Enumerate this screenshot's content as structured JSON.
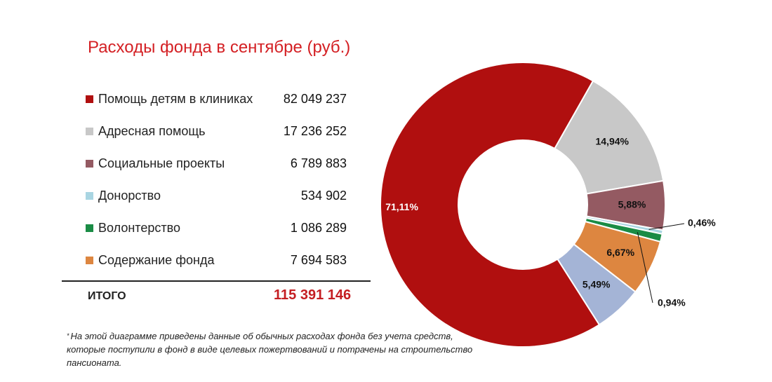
{
  "title": "Расходы фонда в сентябре (руб.)",
  "chart_data": {
    "type": "pie",
    "title": "Расходы фонда в сентябре (руб.)",
    "categories": [
      "Помощь детям в клиниках",
      "Адресная помощь",
      "Социальные проекты",
      "Донорство",
      "Волонтерство",
      "Содержание фонда"
    ],
    "values": [
      82049237,
      17236252,
      6789883,
      534902,
      1086289,
      7694583
    ],
    "value_labels": [
      "82 049 237",
      "17 236 252",
      "6 789 883",
      "534 902",
      "1 086 289",
      "7 694 583"
    ],
    "percent_labels": [
      "71,11%",
      "14,94%",
      "5,88%",
      "0,46%",
      "0,94%",
      "6,67%"
    ],
    "colors": [
      "#b00f0f",
      "#c8c8c8",
      "#945a62",
      "#a9d5e2",
      "#1a8c45",
      "#dd8640"
    ],
    "legend": "left",
    "hole": "donut",
    "other_slice": {
      "label": "5,49%",
      "value_percent": 5.49,
      "color": "#a4b4d6"
    }
  },
  "legend": [
    {
      "label": "Помощь детям в клиниках",
      "value": "82 049 237",
      "color": "#b00f0f"
    },
    {
      "label": "Адресная помощь",
      "value": "17 236 252",
      "color": "#c8c8c8"
    },
    {
      "label": "Социальные проекты",
      "value": "6 789 883",
      "color": "#945a62"
    },
    {
      "label": "Донорство",
      "value": "534 902",
      "color": "#a9d5e2"
    },
    {
      "label": "Волонтерство",
      "value": "1 086 289",
      "color": "#1a8c45"
    },
    {
      "label": "Содержание фонда",
      "value": "7 694 583",
      "color": "#dd8640"
    }
  ],
  "total": {
    "label": "ИТОГО",
    "value": "115 391 146"
  },
  "footnote": {
    "mark": "*",
    "text": "На этой диаграмме приведены данные об обычных расходах фонда без учета средств, которые поступили в фонд в виде целевых пожертвований и потрачены на строительство пансионата."
  },
  "colors": {
    "title": "#d42024",
    "total": "#c41e22"
  }
}
